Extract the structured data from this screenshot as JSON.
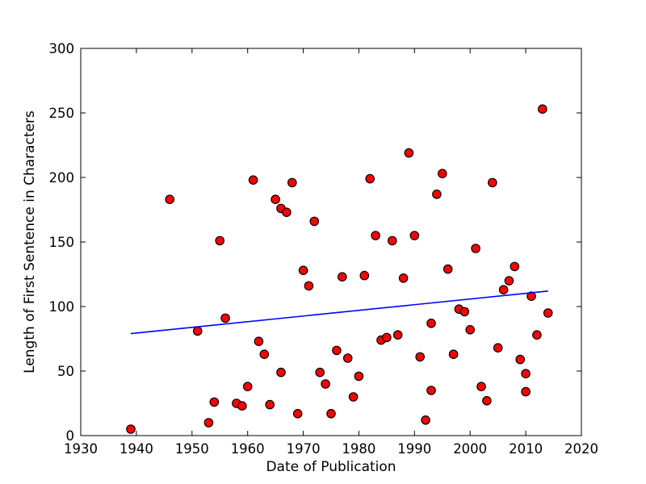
{
  "chart_data": {
    "type": "scatter",
    "title": "",
    "xlabel": "Date of Publication",
    "ylabel": "Length of First Sentence in Characters",
    "xlim": [
      1930,
      2020
    ],
    "ylim": [
      0,
      300
    ],
    "xticks": [
      1930,
      1940,
      1950,
      1960,
      1970,
      1980,
      1990,
      2000,
      2010,
      2020
    ],
    "yticks": [
      0,
      50,
      100,
      150,
      200,
      250,
      300
    ],
    "grid": false,
    "legend": "none",
    "marker": {
      "shape": "circle",
      "fill": "#ff0000",
      "edge": "#000000"
    },
    "trend_line": {
      "x": [
        1939,
        2014
      ],
      "y": [
        79,
        112
      ],
      "color": "#0000ff"
    },
    "points": [
      [
        1939,
        5
      ],
      [
        1946,
        183
      ],
      [
        1951,
        81
      ],
      [
        1953,
        10
      ],
      [
        1954,
        26
      ],
      [
        1955,
        151
      ],
      [
        1956,
        91
      ],
      [
        1958,
        25
      ],
      [
        1959,
        23
      ],
      [
        1960,
        38
      ],
      [
        1961,
        198
      ],
      [
        1962,
        73
      ],
      [
        1963,
        63
      ],
      [
        1964,
        24
      ],
      [
        1965,
        183
      ],
      [
        1966,
        176
      ],
      [
        1966,
        49
      ],
      [
        1967,
        173
      ],
      [
        1968,
        196
      ],
      [
        1969,
        17
      ],
      [
        1970,
        128
      ],
      [
        1971,
        116
      ],
      [
        1972,
        166
      ],
      [
        1973,
        49
      ],
      [
        1974,
        40
      ],
      [
        1975,
        17
      ],
      [
        1976,
        66
      ],
      [
        1977,
        123
      ],
      [
        1978,
        60
      ],
      [
        1979,
        30
      ],
      [
        1980,
        46
      ],
      [
        1981,
        124
      ],
      [
        1982,
        199
      ],
      [
        1983,
        155
      ],
      [
        1984,
        74
      ],
      [
        1985,
        76
      ],
      [
        1986,
        151
      ],
      [
        1987,
        78
      ],
      [
        1988,
        122
      ],
      [
        1989,
        219
      ],
      [
        1990,
        155
      ],
      [
        1991,
        61
      ],
      [
        1992,
        12
      ],
      [
        1993,
        87
      ],
      [
        1993,
        35
      ],
      [
        1994,
        187
      ],
      [
        1995,
        203
      ],
      [
        1996,
        129
      ],
      [
        1997,
        63
      ],
      [
        1998,
        98
      ],
      [
        1999,
        96
      ],
      [
        2000,
        82
      ],
      [
        2001,
        145
      ],
      [
        2002,
        38
      ],
      [
        2003,
        27
      ],
      [
        2004,
        196
      ],
      [
        2005,
        68
      ],
      [
        2006,
        113
      ],
      [
        2007,
        120
      ],
      [
        2008,
        131
      ],
      [
        2009,
        59
      ],
      [
        2010,
        48
      ],
      [
        2010,
        34
      ],
      [
        2011,
        108
      ],
      [
        2012,
        78
      ],
      [
        2013,
        253
      ],
      [
        2014,
        95
      ]
    ],
    "colors": {
      "background": "#ffffff",
      "spine": "#000000",
      "tick_text": "#000000"
    }
  }
}
